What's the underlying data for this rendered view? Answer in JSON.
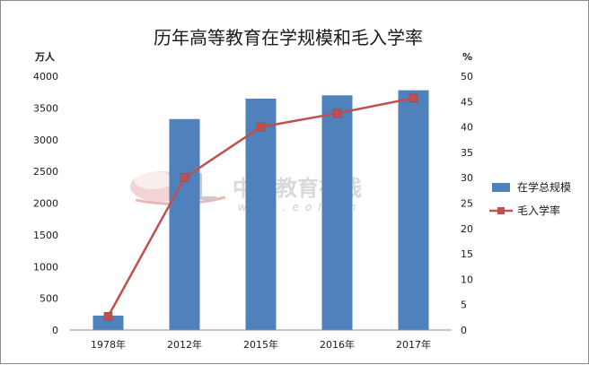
{
  "chart_data": {
    "type": "bar",
    "title": "历年高等教育在学规模和毛入学率",
    "categories": [
      "1978年",
      "2012年",
      "2015年",
      "2016年",
      "2017年"
    ],
    "series": [
      {
        "name": "在学总规模",
        "type": "bar",
        "axis": "left",
        "color": "#4f81bd",
        "values": [
          228,
          3325,
          3647,
          3699,
          3779
        ]
      },
      {
        "name": "毛入学率",
        "type": "line",
        "axis": "right",
        "color": "#c0504d",
        "values": [
          2.7,
          30.0,
          40.0,
          42.7,
          45.7
        ]
      }
    ],
    "ylabel": "万人",
    "y2label": "%",
    "ylim": [
      0,
      4000
    ],
    "y2lim": [
      0,
      50
    ],
    "yticks": [
      "0",
      "500",
      "1000",
      "1500",
      "2000",
      "2500",
      "3000",
      "3500",
      "4000"
    ],
    "y2ticks": [
      "0",
      "5",
      "10",
      "15",
      "20",
      "25",
      "30",
      "35",
      "40",
      "45",
      "50"
    ],
    "grid": false,
    "legend_position": "right"
  },
  "watermark": {
    "text": "中国教育在线",
    "url": "www.eol.cn"
  }
}
